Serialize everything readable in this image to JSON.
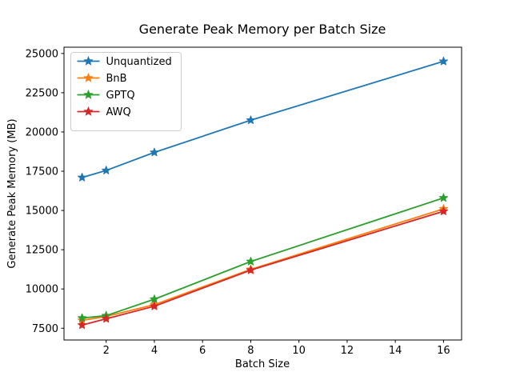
{
  "figure": {
    "background": "#ffffff",
    "frame_color": "#000000",
    "legend_border_color": "#cccccc"
  },
  "chart_data": {
    "type": "line",
    "title": "Generate Peak Memory per Batch Size",
    "xlabel": "Batch Size",
    "ylabel": "Generate Peak Memory (MB)",
    "x": [
      1,
      2,
      4,
      8,
      16
    ],
    "series": [
      {
        "name": "Unquantized",
        "color": "#1f77b4",
        "values": [
          17100,
          17550,
          18700,
          20750,
          24500
        ]
      },
      {
        "name": "BnB",
        "color": "#ff7f0e",
        "values": [
          8000,
          8250,
          9000,
          11250,
          15100
        ]
      },
      {
        "name": "GPTQ",
        "color": "#2ca02c",
        "values": [
          8150,
          8300,
          9350,
          11750,
          15800
        ]
      },
      {
        "name": "AWQ",
        "color": "#d62728",
        "values": [
          7700,
          8100,
          8900,
          11200,
          14950
        ]
      }
    ],
    "xticks": [
      2,
      4,
      6,
      8,
      10,
      12,
      14,
      16
    ],
    "yticks": [
      7500,
      10000,
      12500,
      15000,
      17500,
      20000,
      22500,
      25000
    ],
    "xlim": [
      0.25,
      16.75
    ],
    "ylim": [
      6750,
      25400
    ],
    "grid": false,
    "legend_position": "upper left",
    "marker": "star"
  }
}
